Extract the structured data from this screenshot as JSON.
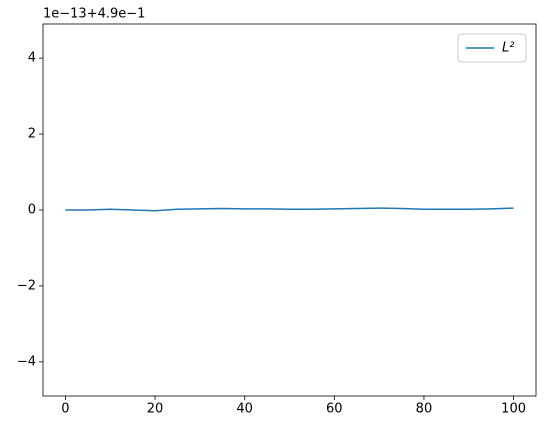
{
  "chart_data": {
    "type": "line",
    "offset_text": "1e−13+4.9e−1",
    "x": [
      0,
      5,
      10,
      15,
      20,
      25,
      30,
      35,
      40,
      45,
      50,
      55,
      60,
      65,
      70,
      75,
      80,
      85,
      90,
      95,
      100
    ],
    "series": [
      {
        "name": "L²",
        "color": "#1f77b4",
        "values": [
          0,
          0,
          0.02,
          0,
          -0.02,
          0.02,
          0.03,
          0.04,
          0.03,
          0.03,
          0.02,
          0.02,
          0.03,
          0.04,
          0.05,
          0.04,
          0.02,
          0.02,
          0.02,
          0.03,
          0.05
        ]
      }
    ],
    "xlim": [
      -5,
      105
    ],
    "xticks": [
      0,
      20,
      40,
      60,
      80,
      100
    ],
    "ylim": [
      -4.9,
      4.9
    ],
    "yticks": [
      {
        "value": -4,
        "label": "−4"
      },
      {
        "value": -2,
        "label": "−2"
      },
      0,
      2,
      4
    ],
    "legend": "upper right"
  }
}
